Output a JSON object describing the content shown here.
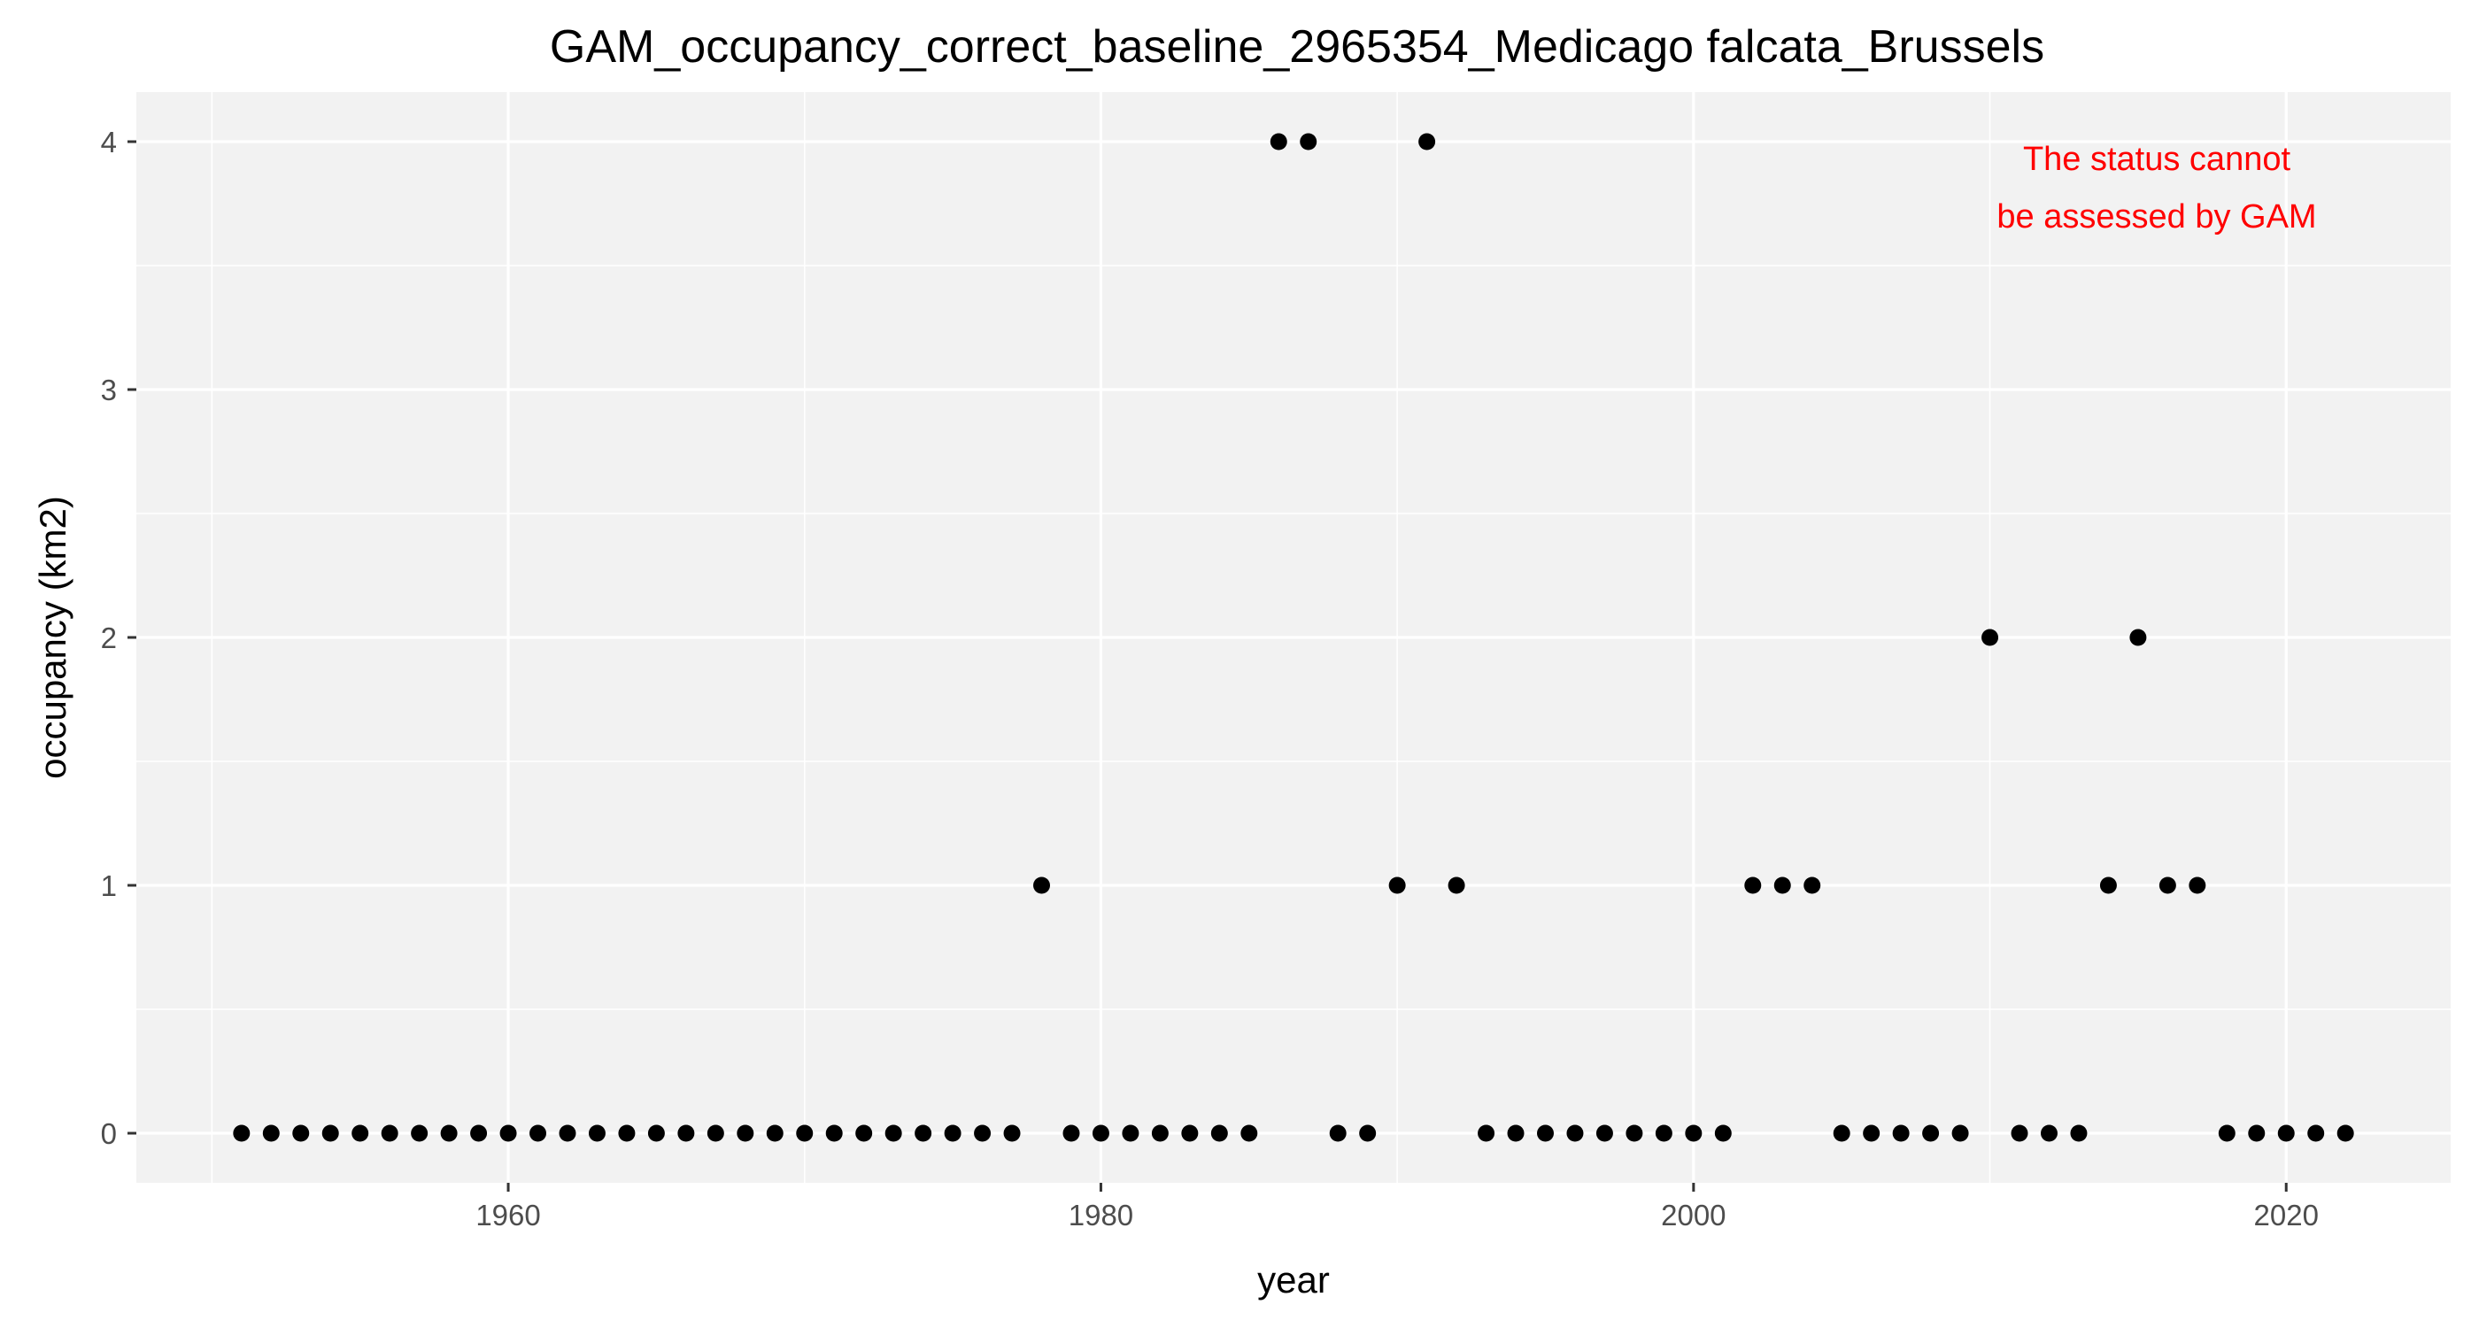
{
  "chart_data": {
    "type": "scatter",
    "title": "GAM_occupancy_correct_baseline_2965354_Medicago falcata_Brussels",
    "xlabel": "year",
    "ylabel": "occupancy (km2)",
    "xlim": [
      1947.45,
      2025.55
    ],
    "ylim": [
      -0.2,
      4.2
    ],
    "x_ticks": [
      1960,
      1980,
      2000,
      2020
    ],
    "y_ticks": [
      0,
      1,
      2,
      3,
      4
    ],
    "grid": true,
    "legend": "none",
    "annotation": {
      "lines": [
        "The status cannot",
        "be assessed by GAM"
      ],
      "color": "#ff0000",
      "placement": "top-right"
    },
    "colors": {
      "panel_background": "#f2f2f2",
      "grid": "#ffffff",
      "points": "#000000",
      "tick_labels": "#4d4d4d"
    },
    "series": [
      {
        "x": [
          1951,
          1952,
          1953,
          1954,
          1955,
          1956,
          1957,
          1958,
          1959,
          1960,
          1961,
          1962,
          1963,
          1964,
          1965,
          1966,
          1967,
          1968,
          1969,
          1970,
          1971,
          1972,
          1973,
          1974,
          1975,
          1976,
          1977,
          1978,
          1979,
          1980,
          1981,
          1982,
          1983,
          1984,
          1985,
          1986,
          1987,
          1988,
          1989,
          1990,
          1991,
          1992,
          1993,
          1994,
          1995,
          1996,
          1997,
          1998,
          1999,
          2000,
          2001,
          2002,
          2003,
          2004,
          2005,
          2006,
          2007,
          2008,
          2009,
          2010,
          2011,
          2012,
          2013,
          2014,
          2015,
          2016,
          2017,
          2018,
          2019,
          2020,
          2021,
          2022
        ],
        "y": [
          0,
          0,
          0,
          0,
          0,
          0,
          0,
          0,
          0,
          0,
          0,
          0,
          0,
          0,
          0,
          0,
          0,
          0,
          0,
          0,
          0,
          0,
          0,
          0,
          0,
          0,
          0,
          1,
          0,
          0,
          0,
          0,
          0,
          0,
          0,
          4,
          4,
          0,
          0,
          1,
          4,
          1,
          0,
          0,
          0,
          0,
          0,
          0,
          0,
          0,
          0,
          1,
          1,
          1,
          0,
          0,
          0,
          0,
          0,
          2,
          0,
          0,
          0,
          1,
          2,
          1,
          1,
          0,
          0,
          0,
          0,
          0
        ]
      }
    ]
  }
}
